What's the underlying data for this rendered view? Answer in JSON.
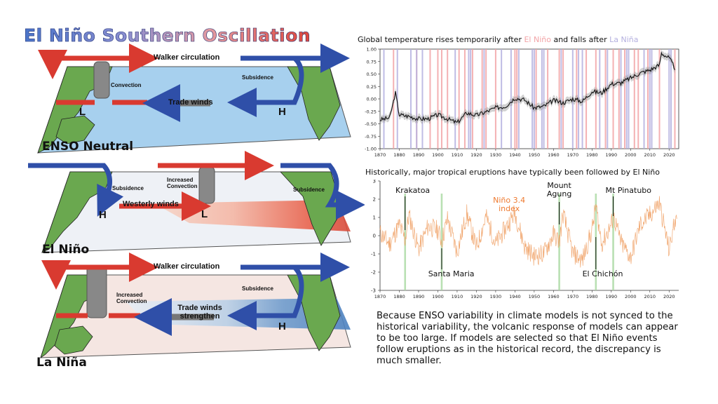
{
  "title": "El Niño Southern Oscillation",
  "panels": {
    "neutral": {
      "label": "ENSO Neutral",
      "walker": "Walker circulation",
      "convection": "Convection",
      "subsidence": "Subsidence",
      "trade": "Trade winds",
      "low": "L",
      "high": "H"
    },
    "elnino": {
      "label": "El Niño",
      "increased_convection": "Increased Convection",
      "subsidence_left": "Subsidence",
      "subsidence_right": "Subsidence",
      "westerly": "Westerly winds",
      "low": "L",
      "high": "H"
    },
    "lanina": {
      "label": "La Niña",
      "walker": "Walker circulation",
      "increased_convection": "Increased Convection",
      "subsidence": "Subsidence",
      "trade": "Trade winds strengthen",
      "high": "H"
    }
  },
  "chart1": {
    "heading_pre": "Global temperature rises temporarily after ",
    "heading_elnino": "El Niño",
    "heading_mid": " and falls after ",
    "heading_lanina": "La Niña",
    "colors": {
      "elnino": "#f2a3a6",
      "lanina": "#b4b0df",
      "line": "#111111"
    }
  },
  "chart2": {
    "heading": "Historically, major tropical eruptions have typically been followed by El Niño",
    "index_label": "Niño 3.4 index",
    "eruptions": [
      "Krakatoa",
      "Santa Maria",
      "Mount Agung",
      "El Chichón",
      "Mt Pinatubo"
    ],
    "colors": {
      "line": "#f0a064",
      "eruption_band": "#a8d8a0",
      "index_label": "#ee7a30"
    }
  },
  "chart_data": [
    {
      "type": "line",
      "title": "Global temperature rises temporarily after El Niño and falls after La Niña",
      "x": [
        1870,
        1875,
        1878,
        1880,
        1885,
        1890,
        1895,
        1900,
        1905,
        1910,
        1915,
        1920,
        1925,
        1930,
        1935,
        1940,
        1945,
        1950,
        1955,
        1960,
        1965,
        1970,
        1975,
        1980,
        1985,
        1990,
        1995,
        2000,
        2005,
        2010,
        2015,
        2016,
        2020,
        2023
      ],
      "series": [
        {
          "values": [
            -0.42,
            -0.38,
            0.12,
            -0.32,
            -0.35,
            -0.4,
            -0.4,
            -0.32,
            -0.4,
            -0.48,
            -0.28,
            -0.33,
            -0.26,
            -0.18,
            -0.15,
            0.02,
            -0.02,
            -0.18,
            -0.15,
            -0.03,
            -0.08,
            0.0,
            -0.05,
            0.15,
            0.12,
            0.3,
            0.32,
            0.42,
            0.52,
            0.58,
            0.68,
            0.92,
            0.82,
            0.62
          ]
        }
      ],
      "xlim": [
        1870,
        2025
      ],
      "ylim": [
        -1.0,
        1.0
      ],
      "yticks": [
        -1.0,
        -0.75,
        -0.5,
        -0.25,
        0.0,
        0.25,
        0.5,
        0.75,
        1.0
      ],
      "xticks": [
        1870,
        1880,
        1890,
        1900,
        1910,
        1920,
        1930,
        1940,
        1950,
        1960,
        1970,
        1980,
        1990,
        2000,
        2010,
        2020
      ],
      "elnino_years": [
        1877,
        1889,
        1896,
        1900,
        1902,
        1905,
        1911,
        1914,
        1918,
        1923,
        1925,
        1930,
        1940,
        1941,
        1951,
        1957,
        1963,
        1965,
        1972,
        1977,
        1982,
        1987,
        1991,
        1994,
        1997,
        2002,
        2004,
        2009,
        2015,
        2023
      ],
      "lanina_years": [
        1872,
        1879,
        1886,
        1889,
        1892,
        1909,
        1916,
        1917,
        1924,
        1933,
        1938,
        1942,
        1949,
        1950,
        1954,
        1955,
        1964,
        1970,
        1973,
        1975,
        1984,
        1988,
        1995,
        1998,
        1999,
        2007,
        2010,
        2011,
        2020,
        2021
      ]
    },
    {
      "type": "line",
      "title": "Historically, major tropical eruptions have typically been followed by El Niño",
      "x": [
        1870,
        1875,
        1880,
        1883,
        1885,
        1890,
        1895,
        1900,
        1902,
        1905,
        1910,
        1915,
        1920,
        1925,
        1930,
        1935,
        1940,
        1945,
        1950,
        1955,
        1960,
        1963,
        1965,
        1970,
        1975,
        1980,
        1982,
        1985,
        1990,
        1991,
        1995,
        2000,
        2005,
        2010,
        2015,
        2020,
        2024
      ],
      "series": [
        {
          "name": "Niño 3.4 index",
          "values": [
            0.2,
            -0.6,
            0.8,
            -0.3,
            1.5,
            -1.0,
            0.7,
            0.4,
            -0.4,
            1.2,
            -1.2,
            1.6,
            -0.9,
            1.4,
            -0.6,
            0.5,
            1.7,
            -0.8,
            -1.5,
            -1.3,
            0.1,
            -0.4,
            1.6,
            -1.3,
            -1.8,
            0.4,
            2.2,
            -0.6,
            0.8,
            1.5,
            -0.5,
            -1.6,
            0.8,
            1.5,
            2.4,
            -1.1,
            1.9
          ]
        }
      ],
      "xlim": [
        1870,
        2025
      ],
      "ylim": [
        -3,
        3
      ],
      "yticks": [
        -3,
        -2,
        -1,
        0,
        1,
        2,
        3
      ],
      "xticks": [
        1870,
        1880,
        1890,
        1900,
        1910,
        1920,
        1930,
        1940,
        1950,
        1960,
        1970,
        1980,
        1990,
        2000,
        2010,
        2020
      ],
      "eruption_years": {
        "Krakatoa": 1883,
        "Santa Maria": 1902,
        "Mount Agung": 1963,
        "El Chichón": 1982,
        "Mt Pinatubo": 1991
      }
    }
  ],
  "explanation": "Because ENSO variability in climate models is not synced to the historical variability, the volcanic response of models can appear to be too large. If models are selected so that El Niño events follow eruptions as in the historical record, the discrepancy is much smaller."
}
